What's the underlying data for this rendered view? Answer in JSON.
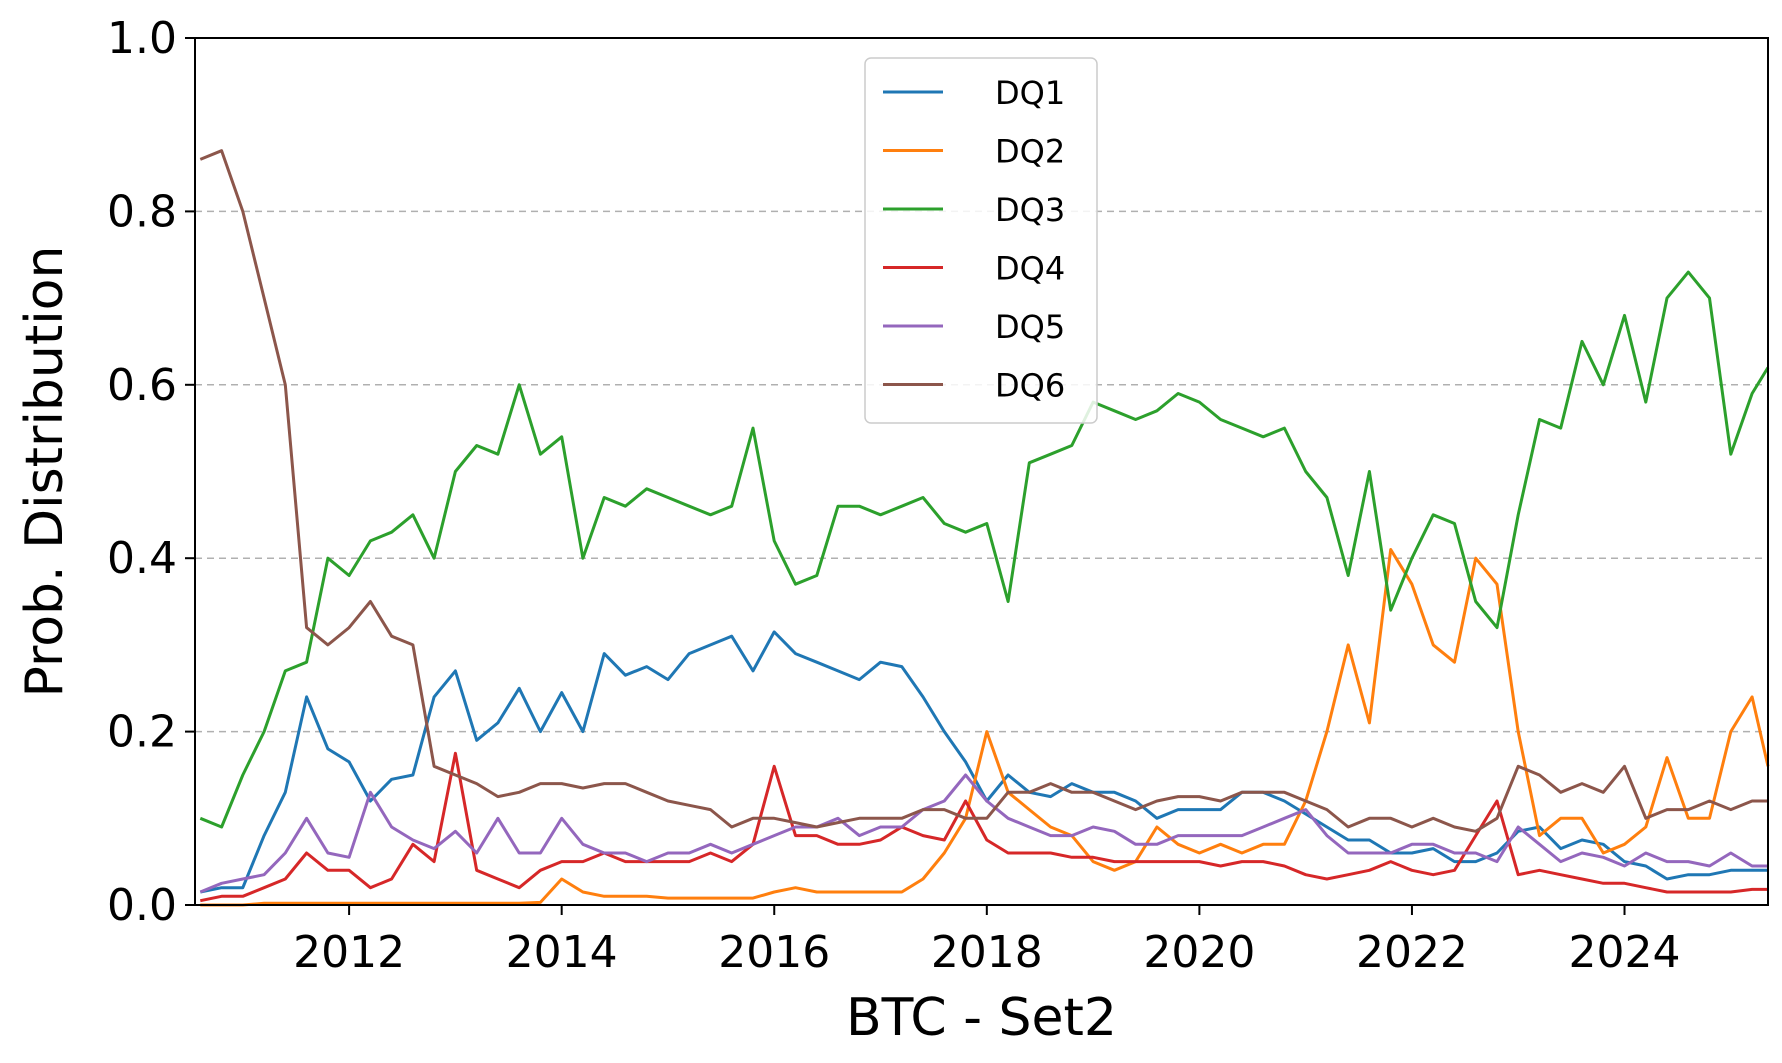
{
  "chart_data": {
    "type": "line",
    "title": "",
    "xlabel": "BTC - Set2",
    "ylabel": "Prob. Distribution",
    "xlim": [
      2010.55,
      2025.35
    ],
    "ylim": [
      0,
      1.0
    ],
    "x_ticks": [
      2012,
      2014,
      2016,
      2018,
      2020,
      2022,
      2024
    ],
    "y_ticks": [
      0.0,
      0.2,
      0.4,
      0.6,
      0.8,
      1.0
    ],
    "y_tick_labels": [
      "0.0",
      "0.2",
      "0.4",
      "0.6",
      "0.8",
      "1.0"
    ],
    "grid": "horizontal dashed",
    "legend_position": "top-center",
    "x": [
      2010.6,
      2010.8,
      2011.0,
      2011.2,
      2011.4,
      2011.6,
      2011.8,
      2012.0,
      2012.2,
      2012.4,
      2012.6,
      2012.8,
      2013.0,
      2013.2,
      2013.4,
      2013.6,
      2013.8,
      2014.0,
      2014.2,
      2014.4,
      2014.6,
      2014.8,
      2015.0,
      2015.2,
      2015.4,
      2015.6,
      2015.8,
      2016.0,
      2016.2,
      2016.4,
      2016.6,
      2016.8,
      2017.0,
      2017.2,
      2017.4,
      2017.6,
      2017.8,
      2018.0,
      2018.2,
      2018.4,
      2018.6,
      2018.8,
      2019.0,
      2019.2,
      2019.4,
      2019.6,
      2019.8,
      2020.0,
      2020.2,
      2020.4,
      2020.6,
      2020.8,
      2021.0,
      2021.2,
      2021.4,
      2021.6,
      2021.8,
      2022.0,
      2022.2,
      2022.4,
      2022.6,
      2022.8,
      2023.0,
      2023.2,
      2023.4,
      2023.6,
      2023.8,
      2024.0,
      2024.2,
      2024.4,
      2024.6,
      2024.8,
      2025.0,
      2025.2,
      2025.35
    ],
    "series": [
      {
        "name": "DQ1",
        "color": "#1f77b4",
        "values": [
          0.015,
          0.02,
          0.02,
          0.08,
          0.13,
          0.24,
          0.18,
          0.165,
          0.12,
          0.145,
          0.15,
          0.24,
          0.27,
          0.19,
          0.21,
          0.25,
          0.2,
          0.245,
          0.2,
          0.29,
          0.265,
          0.275,
          0.26,
          0.29,
          0.3,
          0.31,
          0.27,
          0.315,
          0.29,
          0.28,
          0.27,
          0.26,
          0.28,
          0.275,
          0.24,
          0.2,
          0.165,
          0.12,
          0.15,
          0.13,
          0.125,
          0.14,
          0.13,
          0.13,
          0.12,
          0.1,
          0.11,
          0.11,
          0.11,
          0.13,
          0.13,
          0.12,
          0.105,
          0.09,
          0.075,
          0.075,
          0.06,
          0.06,
          0.065,
          0.05,
          0.05,
          0.06,
          0.085,
          0.09,
          0.065,
          0.075,
          0.07,
          0.05,
          0.045,
          0.03,
          0.035,
          0.035,
          0.04,
          0.04,
          0.04
        ]
      },
      {
        "name": "DQ2",
        "color": "#ff7f0e",
        "values": [
          0.0,
          0.0,
          0.0,
          0.002,
          0.002,
          0.002,
          0.002,
          0.002,
          0.002,
          0.002,
          0.002,
          0.002,
          0.002,
          0.002,
          0.002,
          0.002,
          0.003,
          0.03,
          0.015,
          0.01,
          0.01,
          0.01,
          0.008,
          0.008,
          0.008,
          0.008,
          0.008,
          0.015,
          0.02,
          0.015,
          0.015,
          0.015,
          0.015,
          0.015,
          0.03,
          0.06,
          0.1,
          0.2,
          0.13,
          0.11,
          0.09,
          0.08,
          0.05,
          0.04,
          0.05,
          0.09,
          0.07,
          0.06,
          0.07,
          0.06,
          0.07,
          0.07,
          0.12,
          0.2,
          0.3,
          0.21,
          0.41,
          0.37,
          0.3,
          0.28,
          0.4,
          0.37,
          0.2,
          0.08,
          0.1,
          0.1,
          0.06,
          0.07,
          0.09,
          0.17,
          0.1,
          0.1,
          0.2,
          0.24,
          0.16
        ]
      },
      {
        "name": "DQ3",
        "color": "#2ca02c",
        "values": [
          0.1,
          0.09,
          0.15,
          0.2,
          0.27,
          0.28,
          0.4,
          0.38,
          0.42,
          0.43,
          0.45,
          0.4,
          0.5,
          0.53,
          0.52,
          0.6,
          0.52,
          0.54,
          0.4,
          0.47,
          0.46,
          0.48,
          0.47,
          0.46,
          0.45,
          0.46,
          0.55,
          0.42,
          0.37,
          0.38,
          0.46,
          0.46,
          0.45,
          0.46,
          0.47,
          0.44,
          0.43,
          0.44,
          0.35,
          0.51,
          0.52,
          0.53,
          0.58,
          0.57,
          0.56,
          0.57,
          0.59,
          0.58,
          0.56,
          0.55,
          0.54,
          0.55,
          0.5,
          0.47,
          0.38,
          0.5,
          0.34,
          0.4,
          0.45,
          0.44,
          0.35,
          0.32,
          0.45,
          0.56,
          0.55,
          0.65,
          0.6,
          0.68,
          0.58,
          0.7,
          0.73,
          0.7,
          0.52,
          0.59,
          0.62
        ]
      },
      {
        "name": "DQ4",
        "color": "#d62728",
        "values": [
          0.005,
          0.01,
          0.01,
          0.02,
          0.03,
          0.06,
          0.04,
          0.04,
          0.02,
          0.03,
          0.07,
          0.05,
          0.175,
          0.04,
          0.03,
          0.02,
          0.04,
          0.05,
          0.05,
          0.06,
          0.05,
          0.05,
          0.05,
          0.05,
          0.06,
          0.05,
          0.07,
          0.16,
          0.08,
          0.08,
          0.07,
          0.07,
          0.075,
          0.09,
          0.08,
          0.075,
          0.12,
          0.075,
          0.06,
          0.06,
          0.06,
          0.055,
          0.055,
          0.05,
          0.05,
          0.05,
          0.05,
          0.05,
          0.045,
          0.05,
          0.05,
          0.045,
          0.035,
          0.03,
          0.035,
          0.04,
          0.05,
          0.04,
          0.035,
          0.04,
          0.08,
          0.12,
          0.035,
          0.04,
          0.035,
          0.03,
          0.025,
          0.025,
          0.02,
          0.015,
          0.015,
          0.015,
          0.015,
          0.018,
          0.018
        ]
      },
      {
        "name": "DQ5",
        "color": "#9467bd",
        "values": [
          0.015,
          0.025,
          0.03,
          0.035,
          0.06,
          0.1,
          0.06,
          0.055,
          0.13,
          0.09,
          0.075,
          0.065,
          0.085,
          0.06,
          0.1,
          0.06,
          0.06,
          0.1,
          0.07,
          0.06,
          0.06,
          0.05,
          0.06,
          0.06,
          0.07,
          0.06,
          0.07,
          0.08,
          0.09,
          0.09,
          0.1,
          0.08,
          0.09,
          0.09,
          0.11,
          0.12,
          0.15,
          0.12,
          0.1,
          0.09,
          0.08,
          0.08,
          0.09,
          0.085,
          0.07,
          0.07,
          0.08,
          0.08,
          0.08,
          0.08,
          0.09,
          0.1,
          0.11,
          0.08,
          0.06,
          0.06,
          0.06,
          0.07,
          0.07,
          0.06,
          0.06,
          0.05,
          0.09,
          0.07,
          0.05,
          0.06,
          0.055,
          0.045,
          0.06,
          0.05,
          0.05,
          0.045,
          0.06,
          0.045,
          0.045
        ]
      },
      {
        "name": "DQ6",
        "color": "#8c564b",
        "values": [
          0.86,
          0.87,
          0.8,
          0.7,
          0.6,
          0.32,
          0.3,
          0.32,
          0.35,
          0.31,
          0.3,
          0.16,
          0.15,
          0.14,
          0.125,
          0.13,
          0.14,
          0.14,
          0.135,
          0.14,
          0.14,
          0.13,
          0.12,
          0.115,
          0.11,
          0.09,
          0.1,
          0.1,
          0.095,
          0.09,
          0.095,
          0.1,
          0.1,
          0.1,
          0.11,
          0.11,
          0.1,
          0.1,
          0.13,
          0.13,
          0.14,
          0.13,
          0.13,
          0.12,
          0.11,
          0.12,
          0.125,
          0.125,
          0.12,
          0.13,
          0.13,
          0.13,
          0.12,
          0.11,
          0.09,
          0.1,
          0.1,
          0.09,
          0.1,
          0.09,
          0.085,
          0.1,
          0.16,
          0.15,
          0.13,
          0.14,
          0.13,
          0.16,
          0.1,
          0.11,
          0.11,
          0.12,
          0.11,
          0.12,
          0.12
        ]
      }
    ]
  }
}
